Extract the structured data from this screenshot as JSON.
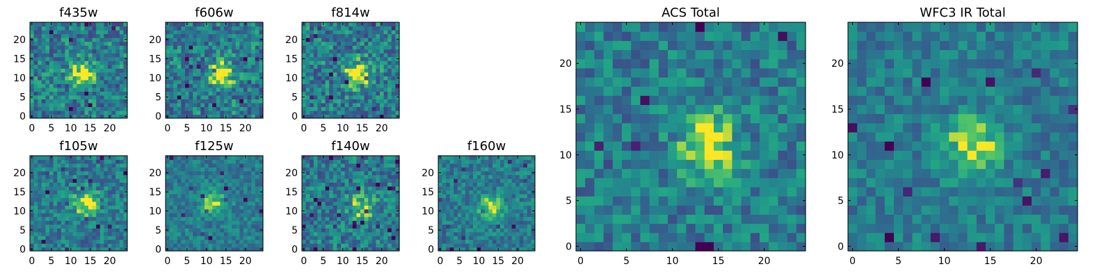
{
  "chart_data": [
    {
      "type": "heatmap",
      "title": "f435w",
      "x_ticks": [
        "0",
        "5",
        "10",
        "15",
        "20"
      ],
      "y_ticks": [
        "0",
        "5",
        "10",
        "15",
        "20"
      ],
      "xlim": [
        -0.5,
        24.5
      ],
      "ylim": [
        -0.5,
        24.5
      ],
      "grid": false,
      "colormap": "viridis",
      "blob_center": [
        13,
        11
      ],
      "blob_strength": 0.55,
      "noise": 0.55,
      "seed": 11
    },
    {
      "type": "heatmap",
      "title": "f606w",
      "x_ticks": [
        "0",
        "5",
        "10",
        "15",
        "20"
      ],
      "y_ticks": [
        "0",
        "5",
        "10",
        "15",
        "20"
      ],
      "xlim": [
        -0.5,
        24.5
      ],
      "ylim": [
        -0.5,
        24.5
      ],
      "grid": false,
      "colormap": "viridis",
      "blob_center": [
        14,
        11
      ],
      "blob_strength": 0.55,
      "noise": 0.55,
      "seed": 23
    },
    {
      "type": "heatmap",
      "title": "f814w",
      "x_ticks": [
        "0",
        "5",
        "10",
        "15",
        "20"
      ],
      "y_ticks": [
        "0",
        "5",
        "10",
        "15",
        "20"
      ],
      "xlim": [
        -0.5,
        24.5
      ],
      "ylim": [
        -0.5,
        24.5
      ],
      "grid": false,
      "colormap": "viridis",
      "blob_center": [
        14,
        11
      ],
      "blob_strength": 0.6,
      "noise": 0.55,
      "seed": 37
    },
    {
      "type": "heatmap",
      "title": "f105w",
      "x_ticks": [
        "0",
        "5",
        "10",
        "15",
        "20"
      ],
      "y_ticks": [
        "0",
        "5",
        "10",
        "15",
        "20"
      ],
      "xlim": [
        -0.5,
        24.5
      ],
      "ylim": [
        -0.5,
        24.5
      ],
      "grid": false,
      "colormap": "viridis",
      "blob_center": [
        14,
        12
      ],
      "blob_strength": 0.5,
      "noise": 0.45,
      "seed": 41
    },
    {
      "type": "heatmap",
      "title": "f125w",
      "x_ticks": [
        "0",
        "5",
        "10",
        "15",
        "20"
      ],
      "y_ticks": [
        "0",
        "5",
        "10",
        "15",
        "20"
      ],
      "xlim": [
        -0.5,
        24.5
      ],
      "ylim": [
        -0.5,
        24.5
      ],
      "grid": false,
      "colormap": "viridis",
      "blob_center": [
        12,
        12
      ],
      "blob_strength": 0.4,
      "noise": 0.35,
      "seed": 53
    },
    {
      "type": "heatmap",
      "title": "f140w",
      "x_ticks": [
        "0",
        "5",
        "10",
        "15",
        "20"
      ],
      "y_ticks": [
        "0",
        "5",
        "10",
        "15",
        "20"
      ],
      "xlim": [
        -0.5,
        24.5
      ],
      "ylim": [
        -0.5,
        24.5
      ],
      "grid": false,
      "colormap": "viridis",
      "blob_center": [
        15,
        11
      ],
      "blob_strength": 0.4,
      "noise": 0.5,
      "seed": 67
    },
    {
      "type": "heatmap",
      "title": "f160w",
      "x_ticks": [
        "0",
        "5",
        "10",
        "15",
        "20"
      ],
      "y_ticks": [
        "0",
        "5",
        "10",
        "15",
        "20"
      ],
      "xlim": [
        -0.5,
        24.5
      ],
      "ylim": [
        -0.5,
        24.5
      ],
      "grid": false,
      "colormap": "viridis",
      "blob_center": [
        13,
        11
      ],
      "blob_strength": 0.45,
      "noise": 0.4,
      "seed": 79
    },
    {
      "type": "heatmap",
      "title": "ACS Total",
      "x_ticks": [
        "0",
        "5",
        "10",
        "15",
        "20"
      ],
      "y_ticks": [
        "0",
        "5",
        "10",
        "15",
        "20"
      ],
      "xlim": [
        -0.5,
        24.5
      ],
      "ylim": [
        -0.5,
        24.5
      ],
      "grid": false,
      "colormap": "viridis",
      "blob_center": [
        14,
        11
      ],
      "blob_strength": 0.55,
      "noise": 0.45,
      "seed": 97
    },
    {
      "type": "heatmap",
      "title": "WFC3 IR Total",
      "x_ticks": [
        "0",
        "5",
        "10",
        "15",
        "20"
      ],
      "y_ticks": [
        "0",
        "5",
        "10",
        "15",
        "20"
      ],
      "xlim": [
        -0.5,
        24.5
      ],
      "ylim": [
        -0.5,
        24.5
      ],
      "grid": false,
      "colormap": "viridis",
      "blob_center": [
        13,
        11
      ],
      "blob_strength": 0.45,
      "noise": 0.35,
      "seed": 131
    }
  ]
}
